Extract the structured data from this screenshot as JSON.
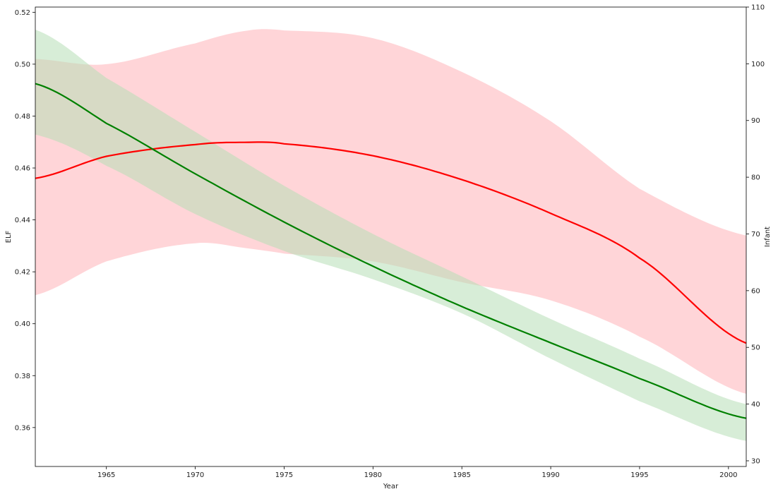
{
  "chart_data": {
    "type": "line",
    "xlabel": "Year",
    "ylabel_left": "ELF",
    "ylabel_right": "Infant",
    "xlim": [
      1961,
      2001
    ],
    "ylim_left": [
      0.345,
      0.522
    ],
    "ylim_right": [
      29,
      110
    ],
    "xticks": [
      1965,
      1970,
      1975,
      1980,
      1985,
      1990,
      1995,
      2000
    ],
    "yticks_left": [
      0.36,
      0.38,
      0.4,
      0.42,
      0.44,
      0.46,
      0.48,
      0.5,
      0.52
    ],
    "yticks_right": [
      30,
      40,
      50,
      60,
      70,
      80,
      90,
      100,
      110
    ],
    "series": [
      {
        "axis": "left",
        "color": "#ff0000",
        "band_color": "#ffb3b8",
        "x": [
          1961,
          1965,
          1970,
          1973,
          1975,
          1980,
          1985,
          1990,
          1995,
          2001
        ],
        "values": [
          0.456,
          0.4645,
          0.469,
          0.4699,
          0.4693,
          0.4647,
          0.4555,
          0.4425,
          0.4253,
          0.3925
        ],
        "lower": [
          0.411,
          0.424,
          0.431,
          0.429,
          0.427,
          0.424,
          0.416,
          0.409,
          0.395,
          0.373
        ],
        "upper": [
          0.502,
          0.5,
          0.508,
          0.513,
          0.513,
          0.51,
          0.497,
          0.478,
          0.452,
          0.434
        ]
      },
      {
        "axis": "right",
        "color": "#008000",
        "band_color": "#b7dfb7",
        "x": [
          1961,
          1965,
          1970,
          1975,
          1980,
          1985,
          1990,
          1995,
          2001
        ],
        "values": [
          96.5,
          89.5,
          80.6,
          72.1,
          64.3,
          57.2,
          50.8,
          44.5,
          37.5
        ],
        "lower": [
          87.5,
          82.0,
          73.5,
          67.0,
          62.0,
          56.0,
          48.0,
          40.5,
          33.5
        ],
        "upper": [
          106.0,
          97.5,
          88.0,
          78.5,
          70.0,
          62.5,
          55.0,
          48.0,
          40.0
        ]
      }
    ]
  }
}
